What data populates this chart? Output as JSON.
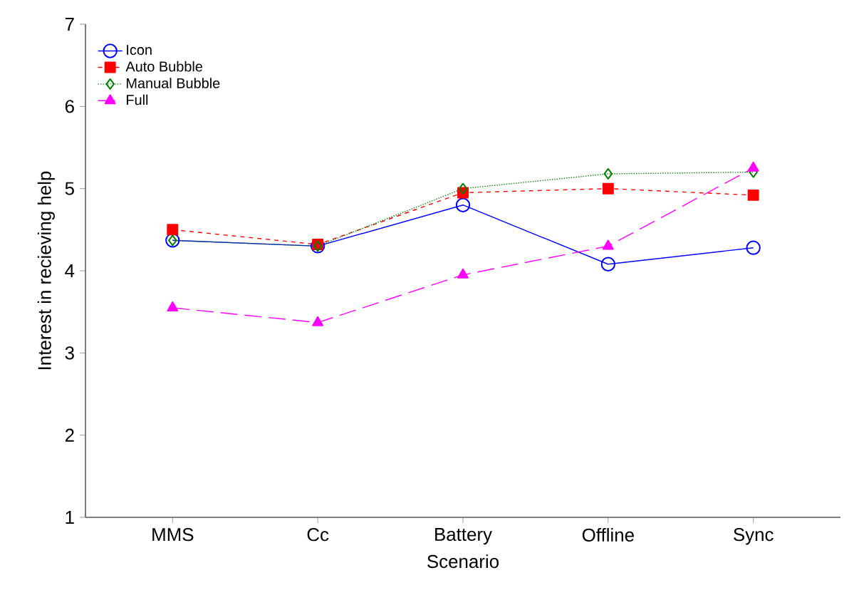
{
  "chart_data": {
    "type": "line",
    "xlabel": "Scenario",
    "ylabel": "Interest in recieving help",
    "categories": [
      "MMS",
      "Cc",
      "Battery",
      "Offline",
      "Sync"
    ],
    "ylim": [
      1,
      7
    ],
    "yticks": [
      1,
      2,
      3,
      4,
      5,
      6,
      7
    ],
    "legend": "top left",
    "grid": false,
    "series": [
      {
        "name": "Icon",
        "color": "#0000ff",
        "marker": "circle",
        "line_style": "solid",
        "values": [
          4.37,
          4.3,
          4.8,
          4.08,
          4.28
        ]
      },
      {
        "name": "Auto Bubble",
        "color": "#ff0000",
        "marker": "square",
        "line_style": "dashed",
        "values": [
          4.5,
          4.32,
          4.95,
          5.0,
          4.92
        ]
      },
      {
        "name": "Manual Bubble",
        "color": "#008000",
        "marker": "diamond",
        "line_style": "dotted",
        "values": [
          4.37,
          4.3,
          5.0,
          5.18,
          5.2
        ]
      },
      {
        "name": "Full",
        "color": "#ff00ff",
        "marker": "triangle",
        "line_style": "longdashed",
        "values": [
          3.55,
          3.37,
          3.95,
          4.3,
          5.25
        ]
      }
    ]
  }
}
